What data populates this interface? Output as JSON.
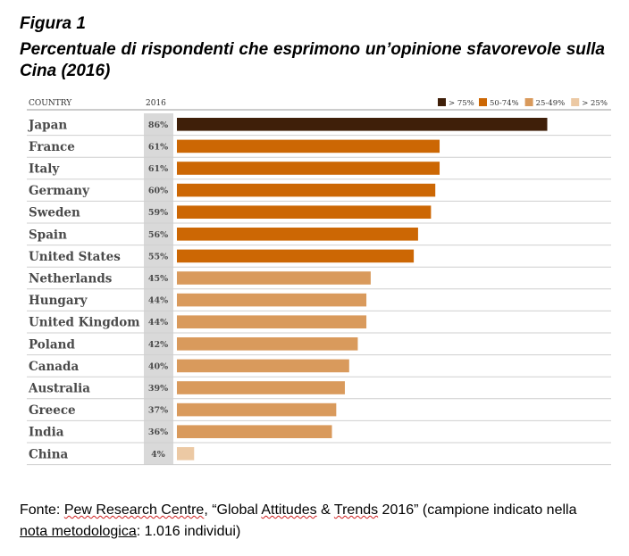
{
  "figure_label": "Figura 1",
  "figure_title": "Percentuale di rispondenti che esprimono un’opinione sfavorevole sulla Cina (2016)",
  "source": {
    "prefix": "Fonte: ",
    "org": "Pew Research Centre",
    "mid1": ", “Global ",
    "attitudes": "Attitudes",
    "mid2": " & ",
    "trends": "Trends",
    "mid3": " 2016” (campione indicato nella ",
    "nota": "nota metodologica",
    "suffix": ": 1.016 individui)"
  },
  "chart_data": {
    "type": "bar",
    "orientation": "horizontal",
    "column_header_category": "COUNTRY",
    "column_header_value": "2016",
    "categories": [
      "Japan",
      "France",
      "Italy",
      "Germany",
      "Sweden",
      "Spain",
      "United States",
      "Netherlands",
      "Hungary",
      "United Kingdom",
      "Poland",
      "Canada",
      "Australia",
      "Greece",
      "India",
      "China"
    ],
    "values": [
      86,
      61,
      61,
      60,
      59,
      56,
      55,
      45,
      44,
      44,
      42,
      40,
      39,
      37,
      36,
      4
    ],
    "value_labels": [
      "86%",
      "61%",
      "61%",
      "60%",
      "59%",
      "56%",
      "55%",
      "45%",
      "44%",
      "44%",
      "42%",
      "40%",
      "39%",
      "37%",
      "36%",
      "4%"
    ],
    "value_unit": "%",
    "xlim": [
      0,
      100
    ],
    "grid": false,
    "legend_position": "top-right",
    "legend": [
      {
        "label": "> 75%",
        "color": "#3f1f09"
      },
      {
        "label": "50-74%",
        "color": "#cc6704"
      },
      {
        "label": "25-49%",
        "color": "#d99a5c"
      },
      {
        "label": "> 25%",
        "color": "#ecc9a4"
      }
    ]
  }
}
